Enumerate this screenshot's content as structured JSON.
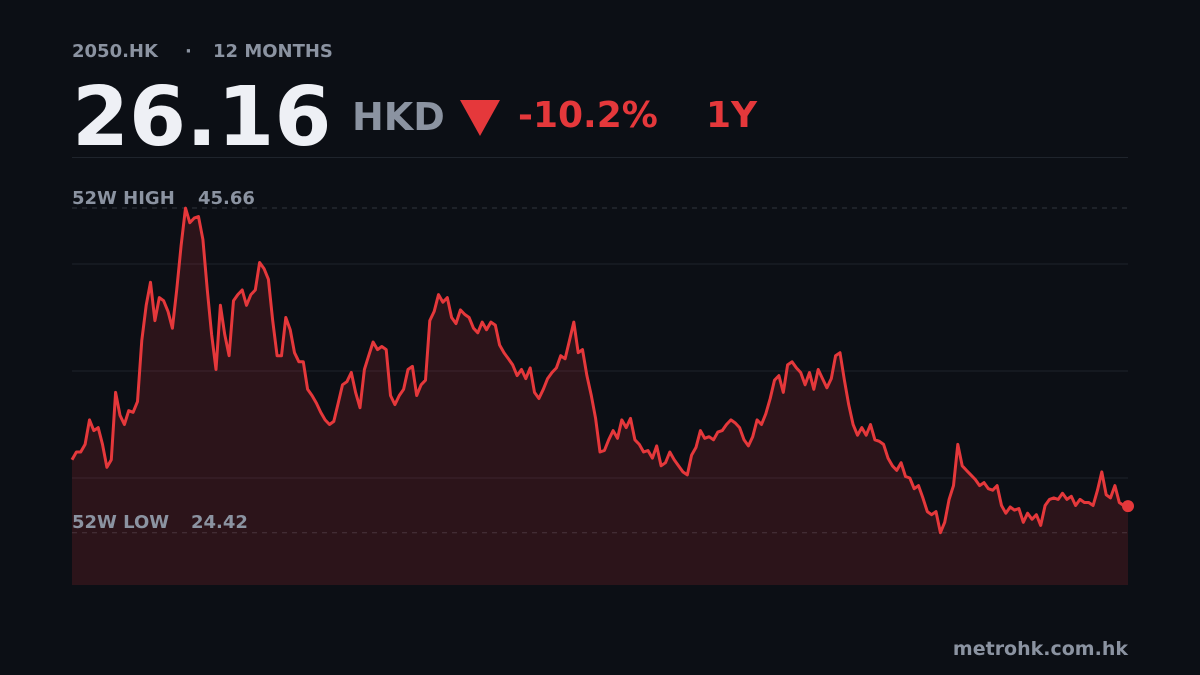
{
  "chart_data": {
    "type": "line",
    "ticker": "2050.HK",
    "separator": "·",
    "period": "12 MONTHS",
    "price": 26.16,
    "currency": "HKD",
    "change": "-10.2%",
    "range": "1Y",
    "high_label": "52W HIGH",
    "high": 45.66,
    "low_label": "52W LOW",
    "low": 24.42,
    "source": "metrohk.com.hk",
    "color": "#e5383b",
    "ylim": [
      21,
      49
    ],
    "yticks": [
      28,
      35,
      42
    ],
    "grid": true,
    "values": [
      29.2,
      29.7,
      29.7,
      30.2,
      31.8,
      31.1,
      31.3,
      30.2,
      28.7,
      29.2,
      33.6,
      32.1,
      31.5,
      32.4,
      32.3,
      33.0,
      37.0,
      39.3,
      40.8,
      38.3,
      39.8,
      39.6,
      38.9,
      37.8,
      40.3,
      43.2,
      45.66,
      44.7,
      45.0,
      45.1,
      43.6,
      40.3,
      37.4,
      35.1,
      39.3,
      37.4,
      36.0,
      39.6,
      40.0,
      40.3,
      39.3,
      40.0,
      40.3,
      42.1,
      41.7,
      41.0,
      38.3,
      36.0,
      36.0,
      38.5,
      37.7,
      36.2,
      35.6,
      35.6,
      33.8,
      33.4,
      32.9,
      32.3,
      31.8,
      31.5,
      31.7,
      32.9,
      34.1,
      34.3,
      34.9,
      33.6,
      32.6,
      35.1,
      36.0,
      36.9,
      36.4,
      36.6,
      36.4,
      33.4,
      32.8,
      33.4,
      33.8,
      35.1,
      35.3,
      33.4,
      34.1,
      34.4,
      38.3,
      38.9,
      40.0,
      39.5,
      39.8,
      38.5,
      38.1,
      39.0,
      38.7,
      38.5,
      37.8,
      37.5,
      38.2,
      37.7,
      38.2,
      38.0,
      36.7,
      36.2,
      35.8,
      35.4,
      34.7,
      35.1,
      34.5,
      35.2,
      33.6,
      33.2,
      33.8,
      34.5,
      34.9,
      35.2,
      36.0,
      35.8,
      37.0,
      38.2,
      36.2,
      36.4,
      34.7,
      33.4,
      31.9,
      29.7,
      29.8,
      30.5,
      31.1,
      30.6,
      31.8,
      31.3,
      31.9,
      30.5,
      30.2,
      29.7,
      29.8,
      29.3,
      30.1,
      28.8,
      29.0,
      29.7,
      29.2,
      28.8,
      28.4,
      28.2,
      29.5,
      30.0,
      31.1,
      30.6,
      30.7,
      30.5,
      31.0,
      31.1,
      31.5,
      31.8,
      31.6,
      31.3,
      30.5,
      30.1,
      30.7,
      31.8,
      31.5,
      32.2,
      33.2,
      34.4,
      34.7,
      33.6,
      35.4,
      35.6,
      35.2,
      34.9,
      34.1,
      34.9,
      33.8,
      35.1,
      34.5,
      33.9,
      34.5,
      36.0,
      36.2,
      34.4,
      32.8,
      31.5,
      30.8,
      31.3,
      30.8,
      31.5,
      30.5,
      30.4,
      30.2,
      29.3,
      28.8,
      28.5,
      29.0,
      28.1,
      28.0,
      27.3,
      27.5,
      26.7,
      25.8,
      25.6,
      25.8,
      24.42,
      25.1,
      26.6,
      27.5,
      30.2,
      28.8,
      28.5,
      28.2,
      27.9,
      27.5,
      27.7,
      27.3,
      27.2,
      27.5,
      26.2,
      25.7,
      26.1,
      25.9,
      26.0,
      25.1,
      25.7,
      25.3,
      25.6,
      24.9,
      26.2,
      26.6,
      26.7,
      26.6,
      27.0,
      26.6,
      26.8,
      26.2,
      26.6,
      26.4,
      26.4,
      26.2,
      27.2,
      28.4,
      26.9,
      26.7,
      27.5,
      26.4,
      26.2,
      26.16
    ]
  }
}
